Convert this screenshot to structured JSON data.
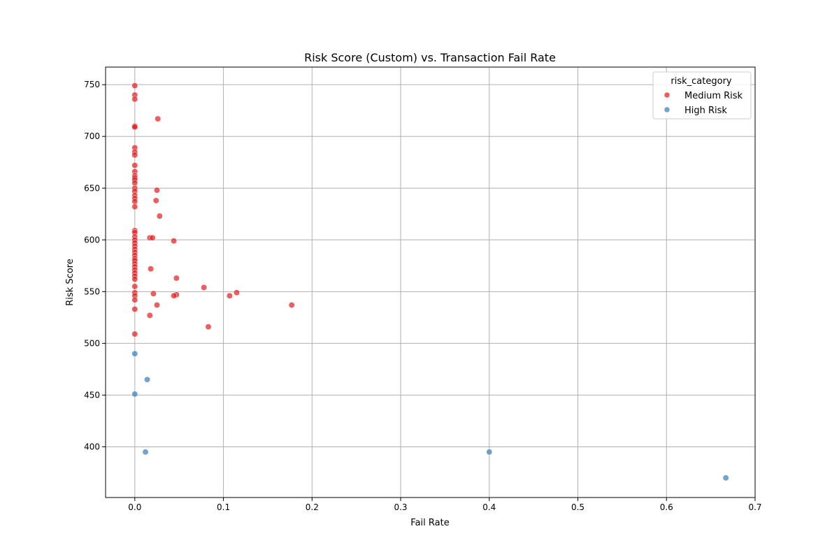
{
  "chart_data": {
    "type": "scatter",
    "title": "Risk Score (Custom) vs. Transaction Fail Rate",
    "xlabel": "Fail Rate",
    "ylabel": "Risk Score",
    "xlim": [
      -0.033,
      0.7
    ],
    "ylim": [
      351,
      767
    ],
    "xticks": [
      0.0,
      0.1,
      0.2,
      0.3,
      0.4,
      0.5,
      0.6,
      0.7
    ],
    "xtick_labels": [
      "0.0",
      "0.1",
      "0.2",
      "0.3",
      "0.4",
      "0.5",
      "0.6",
      "0.7"
    ],
    "yticks": [
      400,
      450,
      500,
      550,
      600,
      650,
      700,
      750
    ],
    "ytick_labels": [
      "400",
      "450",
      "500",
      "550",
      "600",
      "650",
      "700",
      "750"
    ],
    "grid": true,
    "legend": {
      "title": "risk_category",
      "placement": "top-right",
      "entries": [
        "Medium Risk",
        "High Risk"
      ]
    },
    "series": [
      {
        "name": "Medium Risk",
        "color": "#e41a1c",
        "points": [
          [
            0.0,
            749
          ],
          [
            0.0,
            740
          ],
          [
            0.0,
            736
          ],
          [
            0.0,
            710
          ],
          [
            0.0,
            709
          ],
          [
            0.0,
            689
          ],
          [
            0.0,
            685
          ],
          [
            0.0,
            682
          ],
          [
            0.0,
            672
          ],
          [
            0.0,
            666
          ],
          [
            0.0,
            662
          ],
          [
            0.0,
            660
          ],
          [
            0.0,
            658
          ],
          [
            0.0,
            655
          ],
          [
            0.0,
            650
          ],
          [
            0.0,
            647
          ],
          [
            0.0,
            643
          ],
          [
            0.0,
            640
          ],
          [
            0.0,
            637
          ],
          [
            0.0,
            632
          ],
          [
            0.0,
            609
          ],
          [
            0.0,
            607
          ],
          [
            0.0,
            603
          ],
          [
            0.0,
            600
          ],
          [
            0.0,
            597
          ],
          [
            0.0,
            594
          ],
          [
            0.0,
            591
          ],
          [
            0.0,
            588
          ],
          [
            0.0,
            585
          ],
          [
            0.0,
            582
          ],
          [
            0.0,
            580
          ],
          [
            0.0,
            577
          ],
          [
            0.0,
            574
          ],
          [
            0.0,
            571
          ],
          [
            0.0,
            568
          ],
          [
            0.0,
            565
          ],
          [
            0.0,
            562
          ],
          [
            0.0,
            555
          ],
          [
            0.0,
            549
          ],
          [
            0.0,
            546
          ],
          [
            0.0,
            542
          ],
          [
            0.0,
            533
          ],
          [
            0.0,
            509
          ],
          [
            0.026,
            717
          ],
          [
            0.025,
            648
          ],
          [
            0.024,
            638
          ],
          [
            0.028,
            623
          ],
          [
            0.017,
            602
          ],
          [
            0.02,
            602
          ],
          [
            0.044,
            599
          ],
          [
            0.018,
            572
          ],
          [
            0.047,
            563
          ],
          [
            0.078,
            554
          ],
          [
            0.115,
            549
          ],
          [
            0.021,
            548
          ],
          [
            0.047,
            547
          ],
          [
            0.107,
            546
          ],
          [
            0.044,
            546
          ],
          [
            0.177,
            537
          ],
          [
            0.025,
            537
          ],
          [
            0.017,
            527
          ],
          [
            0.083,
            516
          ]
        ]
      },
      {
        "name": "High Risk",
        "color": "#377eb8",
        "points": [
          [
            0.0,
            490
          ],
          [
            0.014,
            465
          ],
          [
            0.0,
            451
          ],
          [
            0.012,
            395
          ],
          [
            0.4,
            395
          ],
          [
            0.667,
            370
          ]
        ]
      }
    ]
  }
}
